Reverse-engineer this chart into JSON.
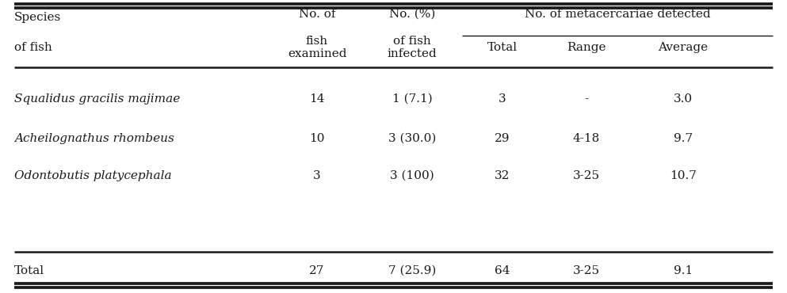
{
  "span_header": "No. of metacercariae detected",
  "rows": [
    {
      "species": "Squalidus gracilis majimae",
      "italic": true,
      "examined": "14",
      "infected": "1 (7.1)",
      "total": "3",
      "range": "-",
      "average": "3.0"
    },
    {
      "species": "Acheilognathus rhombeus",
      "italic": true,
      "examined": "10",
      "infected": "3 (30.0)",
      "total": "29",
      "range": "4-18",
      "average": "9.7"
    },
    {
      "species": "Odontobutis platycephala",
      "italic": true,
      "examined": "3",
      "infected": "3 (100)",
      "total": "32",
      "range": "3-25",
      "average": "10.7"
    }
  ],
  "total_row": {
    "species": "Total",
    "italic": false,
    "examined": "27",
    "infected": "7 (25.9)",
    "total": "64",
    "range": "3-25",
    "average": "9.1"
  },
  "background_color": "#ffffff",
  "text_color": "#1a1a1a",
  "fontsize": 11.0,
  "line_thick": 1.8,
  "line_thin": 1.0
}
